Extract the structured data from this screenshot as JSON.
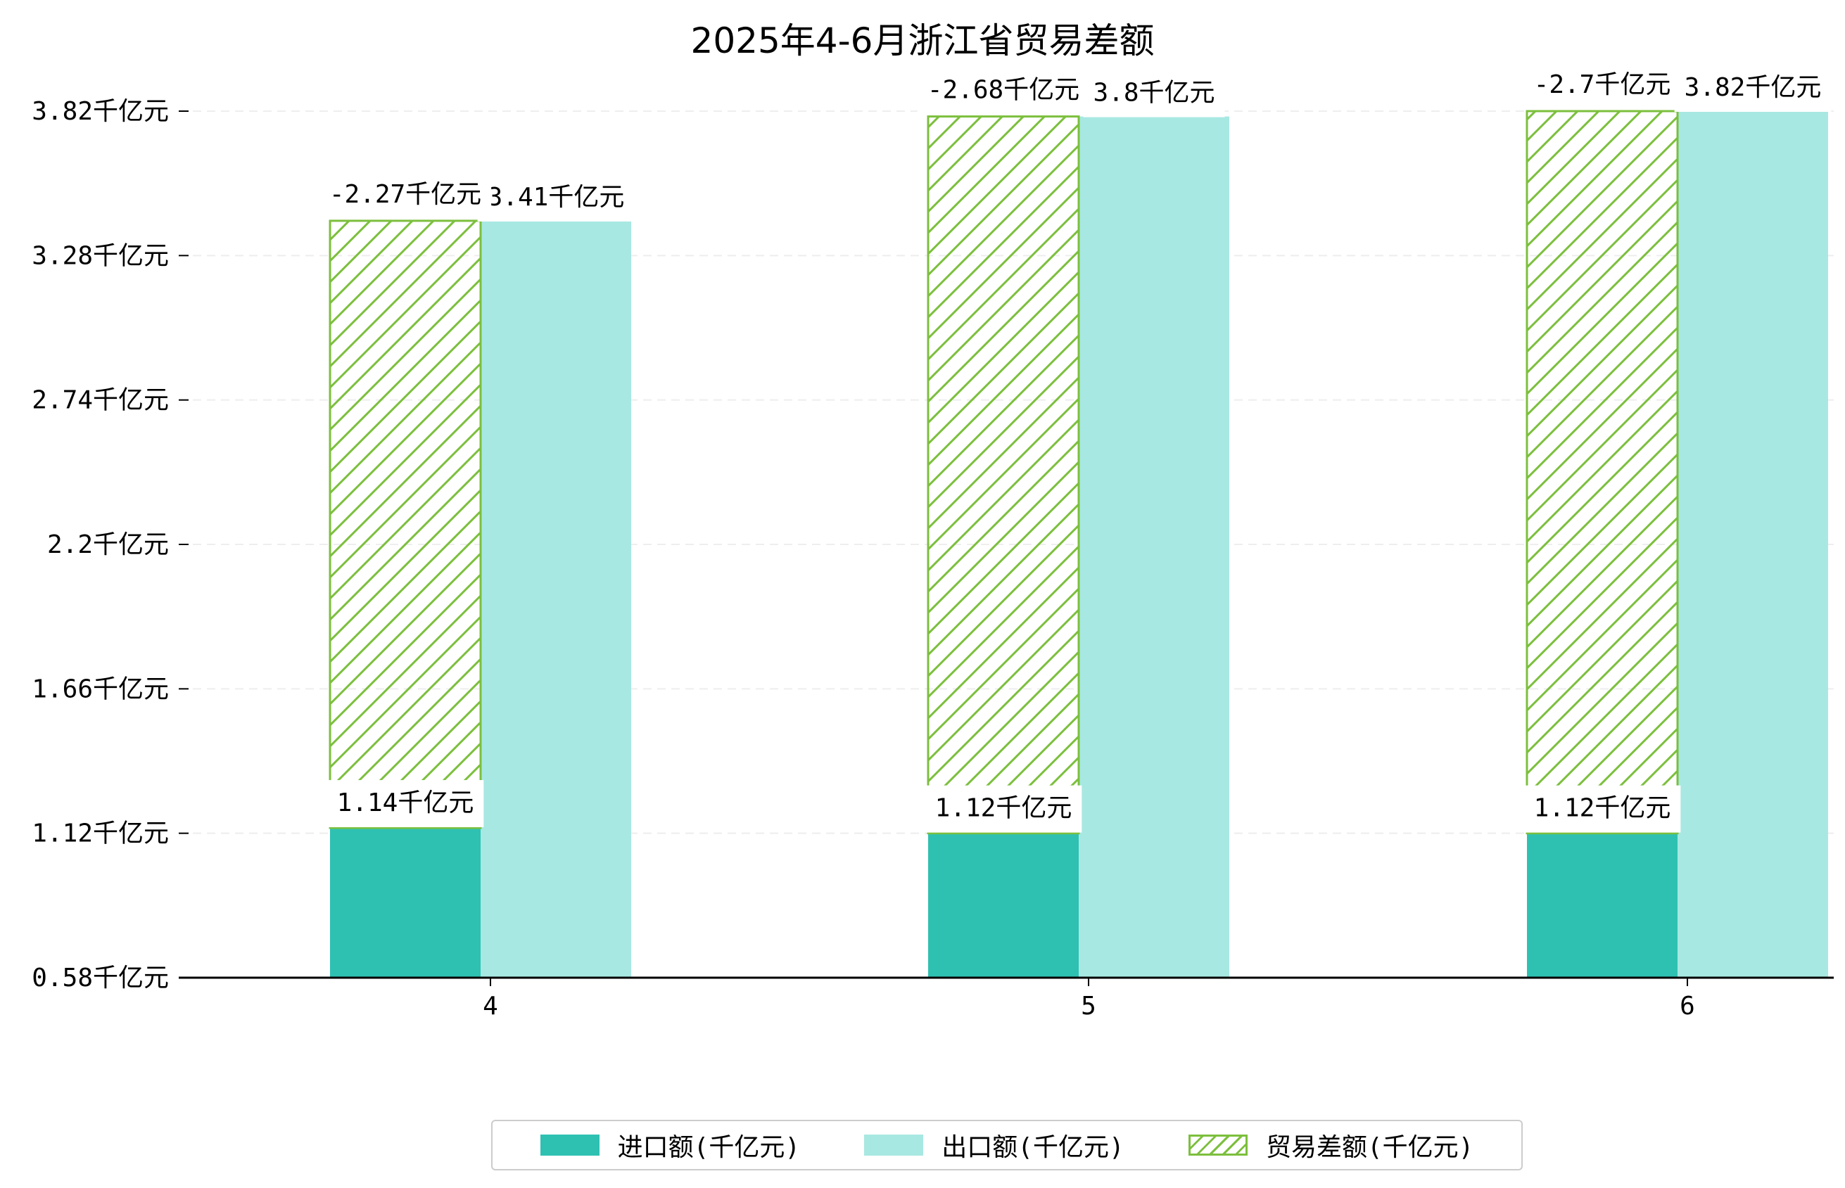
{
  "title": "2025年4-6月浙江省贸易差额",
  "colors": {
    "import": "#2ec1b2",
    "export": "#a8e8e2",
    "balance_hatch": "#7cbf3d",
    "grid": "#eeeeee",
    "axis": "#000000"
  },
  "chart_data": {
    "type": "bar",
    "title": "2025年4-6月浙江省贸易差额",
    "xlabel": "",
    "ylabel": "",
    "categories": [
      "4",
      "5",
      "6"
    ],
    "ylim": [
      0.58,
      3.82
    ],
    "y_ticks": [
      0.58,
      1.12,
      1.66,
      2.2,
      2.74,
      3.28,
      3.82
    ],
    "y_tick_labels": [
      "0.58千亿元",
      "1.12千亿元",
      "1.66千亿元",
      "2.2千亿元",
      "2.74千亿元",
      "3.28千亿元",
      "3.82千亿元"
    ],
    "grid": "horizontal dashed",
    "legend_position": "bottom-center",
    "series": [
      {
        "name": "进口额(千亿元)",
        "values": [
          1.14,
          1.12,
          1.12
        ],
        "labels": [
          "1.14千亿元",
          "1.12千亿元",
          "1.12千亿元"
        ]
      },
      {
        "name": "出口额(千亿元)",
        "values": [
          3.41,
          3.8,
          3.82
        ],
        "labels": [
          "3.41千亿元",
          "3.8千亿元",
          "3.82千亿元"
        ]
      },
      {
        "name": "贸易差额(千亿元)",
        "values": [
          -2.27,
          -2.68,
          -2.7
        ],
        "labels": [
          "-2.27千亿元",
          "-2.68千亿元",
          "-2.7千亿元"
        ],
        "style": "hatched, stacked on import"
      }
    ]
  }
}
